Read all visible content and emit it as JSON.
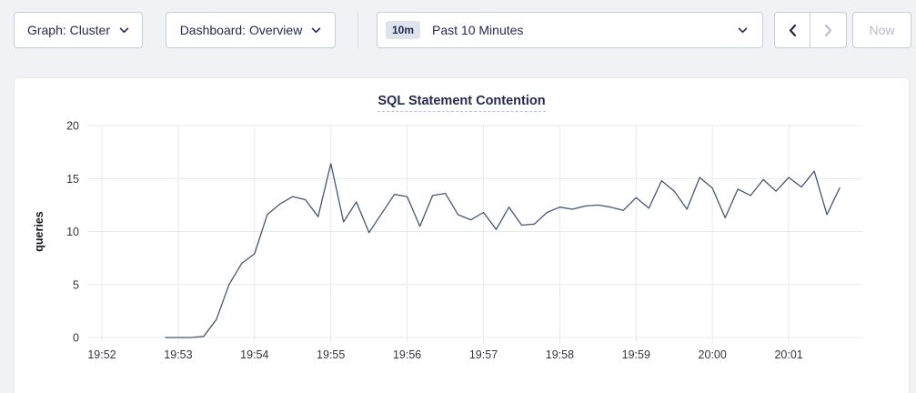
{
  "toolbar": {
    "graph_dropdown": {
      "label": "Graph: Cluster"
    },
    "dashboard_dropdown": {
      "label": "Dashboard: Overview"
    },
    "time_range": {
      "badge": "10m",
      "label": "Past 10 Minutes"
    },
    "prev_button": {
      "enabled": true
    },
    "next_button": {
      "enabled": false
    },
    "now_button": {
      "label": "Now",
      "enabled": false
    },
    "icons": {
      "graph_chevron": "chevron-down-icon",
      "dashboard_chevron": "chevron-down-icon",
      "time_chevron": "chevron-down-icon",
      "prev": "chevron-left-icon",
      "next": "chevron-right-icon"
    }
  },
  "colors": {
    "text_primary": "#242a50",
    "text_disabled": "#b4bac7",
    "line": "#475673",
    "grid": "#e8e9ed",
    "tick_label": "#32353f",
    "page_bg": "#f1f2f6",
    "card_bg": "#ffffff"
  },
  "chart_data": {
    "type": "line",
    "title": "SQL Statement Contention",
    "xlabel": "",
    "ylabel": "queries",
    "ylim": [
      0,
      20
    ],
    "yticks": [
      0,
      5,
      10,
      15,
      20
    ],
    "xticks": [
      "19:52",
      "19:53",
      "19:54",
      "19:55",
      "19:56",
      "19:57",
      "19:58",
      "19:59",
      "20:00",
      "20:01"
    ],
    "grid": true,
    "legend_position": "none",
    "series": [
      {
        "name": "queries",
        "color": "#475673",
        "points": [
          [
            "19:52:50",
            0
          ],
          [
            "19:53:00",
            0
          ],
          [
            "19:53:10",
            0
          ],
          [
            "19:53:20",
            0.1
          ],
          [
            "19:53:30",
            1.7
          ],
          [
            "19:53:40",
            5
          ],
          [
            "19:53:50",
            7
          ],
          [
            "19:54:00",
            7.9
          ],
          [
            "19:54:10",
            11.6
          ],
          [
            "19:54:20",
            12.6
          ],
          [
            "19:54:30",
            13.3
          ],
          [
            "19:54:40",
            13
          ],
          [
            "19:54:50",
            11.4
          ],
          [
            "19:55:00",
            16.4
          ],
          [
            "19:55:10",
            10.9
          ],
          [
            "19:55:20",
            12.8
          ],
          [
            "19:55:30",
            9.9
          ],
          [
            "19:55:40",
            11.7
          ],
          [
            "19:55:50",
            13.5
          ],
          [
            "19:56:00",
            13.3
          ],
          [
            "19:56:10",
            10.5
          ],
          [
            "19:56:20",
            13.4
          ],
          [
            "19:56:30",
            13.6
          ],
          [
            "19:56:40",
            11.6
          ],
          [
            "19:56:50",
            11.1
          ],
          [
            "19:57:00",
            11.8
          ],
          [
            "19:57:10",
            10.2
          ],
          [
            "19:57:20",
            12.3
          ],
          [
            "19:57:30",
            10.6
          ],
          [
            "19:57:40",
            10.7
          ],
          [
            "19:57:50",
            11.8
          ],
          [
            "19:58:00",
            12.3
          ],
          [
            "19:58:10",
            12.1
          ],
          [
            "19:58:20",
            12.4
          ],
          [
            "19:58:30",
            12.5
          ],
          [
            "19:58:40",
            12.3
          ],
          [
            "19:58:50",
            12.0
          ],
          [
            "19:59:00",
            13.2
          ],
          [
            "19:59:10",
            12.2
          ],
          [
            "19:59:20",
            14.8
          ],
          [
            "19:59:30",
            13.8
          ],
          [
            "19:59:40",
            12.1
          ],
          [
            "19:59:50",
            15.1
          ],
          [
            "20:00:00",
            14.1
          ],
          [
            "20:00:10",
            11.3
          ],
          [
            "20:00:20",
            14.0
          ],
          [
            "20:00:30",
            13.4
          ],
          [
            "20:00:40",
            14.9
          ],
          [
            "20:00:50",
            13.8
          ],
          [
            "20:01:00",
            15.1
          ],
          [
            "20:01:10",
            14.2
          ],
          [
            "20:01:20",
            15.7
          ],
          [
            "20:01:30",
            11.6
          ],
          [
            "20:01:40",
            14.1
          ]
        ]
      }
    ]
  }
}
